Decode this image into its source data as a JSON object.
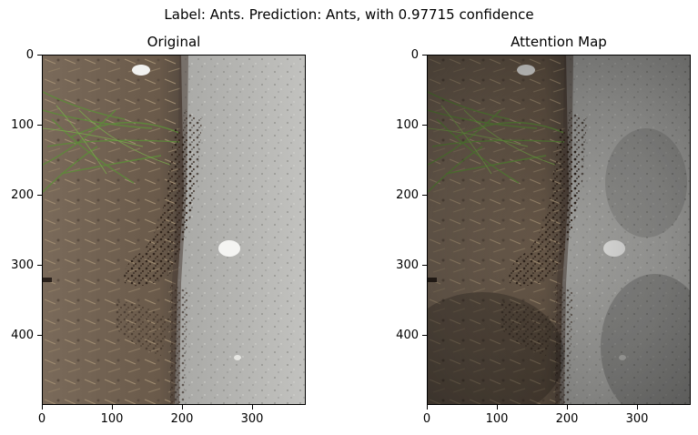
{
  "figure": {
    "suptitle": "Label: Ants. Prediction: Ants, with 0.97715 confidence"
  },
  "panels": [
    {
      "title": "Original",
      "xticks": [
        "0",
        "100",
        "200",
        "300"
      ],
      "yticks": [
        "0",
        "100",
        "200",
        "300",
        "400"
      ]
    },
    {
      "title": "Attention Map",
      "xticks": [
        "0",
        "100",
        "200",
        "300"
      ],
      "yticks": [
        "0",
        "100",
        "200",
        "300",
        "400"
      ]
    }
  ],
  "image_description": "Photo of ants swarming at the edge of a concrete curb beside dry soil, leaves and green grass",
  "colors": {
    "concrete": "#b9b9b6",
    "soil": "#6e5d4e",
    "grass": "#5e8a3a",
    "ants": "#3a2b22",
    "attention_overlay": "#000000"
  }
}
